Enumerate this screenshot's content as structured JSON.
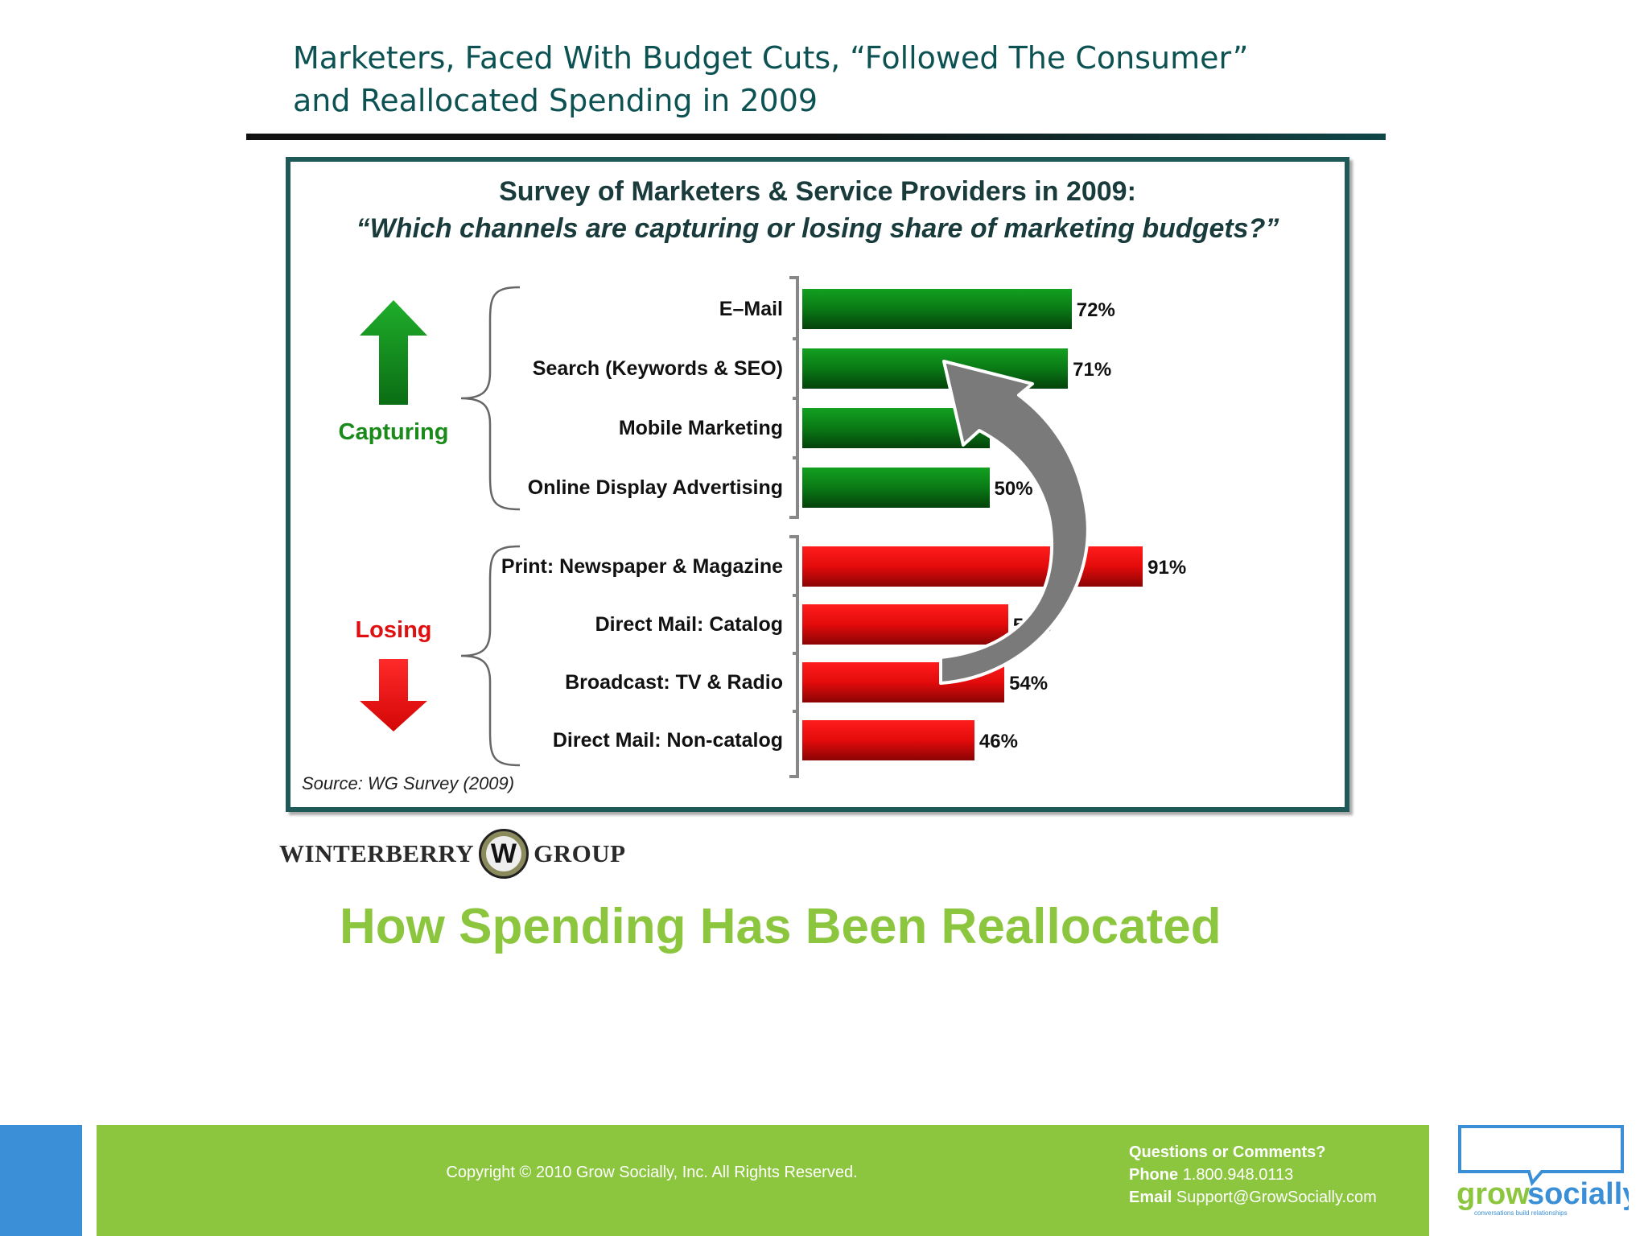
{
  "slide": {
    "title_line1": "Marketers, Faced With Budget Cuts, “Followed The Consumer”",
    "title_line2": "and Reallocated Spending in 2009",
    "subheading": "How Spending Has Been Reallocated"
  },
  "chart_data": {
    "type": "bar",
    "orientation": "horizontal",
    "title": "Survey of Marketers & Service Providers in 2009:",
    "subtitle": "“Which channels are capturing or losing share of marketing budgets?”",
    "groups": [
      {
        "label": "Capturing",
        "color": "#1a8a1a",
        "categories": [
          "E–Mail",
          "Search (Keywords & SEO)",
          "Mobile Marketing",
          "Online Display Advertising"
        ],
        "values": [
          72,
          71,
          50,
          50
        ],
        "value_labels": [
          "72%",
          "71%",
          "50%",
          "50%"
        ]
      },
      {
        "label": "Losing",
        "color": "#e01010",
        "categories": [
          "Print: Newspaper & Magazine",
          "Direct Mail: Catalog",
          "Broadcast: TV & Radio",
          "Direct Mail: Non-catalog"
        ],
        "values": [
          91,
          55,
          54,
          46
        ],
        "value_labels": [
          "91%",
          "55%",
          "54%",
          "46%"
        ]
      }
    ],
    "xlim": [
      0,
      100
    ],
    "grid": false,
    "source": "Source: WG Survey (2009)"
  },
  "logos": {
    "winterberry_left": "WINTERBERRY",
    "winterberry_mark": "W",
    "winterberry_right": "GROUP",
    "gs_word1": "grow",
    "gs_word2": "socially",
    "gs_tagline": "conversations build relationships"
  },
  "footer": {
    "copyright": "Copyright © 2010 Grow Socially, Inc. All Rights Reserved.",
    "contact_heading": "Questions or Comments?",
    "phone_label": "Phone",
    "phone": "1.800.948.0113",
    "email_label": "Email",
    "email": "Support@GrowSocially.com"
  },
  "colors": {
    "title": "#0d5253",
    "subheading": "#8cc63f",
    "footer_green": "#8cc63f",
    "footer_blue": "#3a8fd6",
    "capturing": "#1a8a1a",
    "losing": "#e01010"
  }
}
